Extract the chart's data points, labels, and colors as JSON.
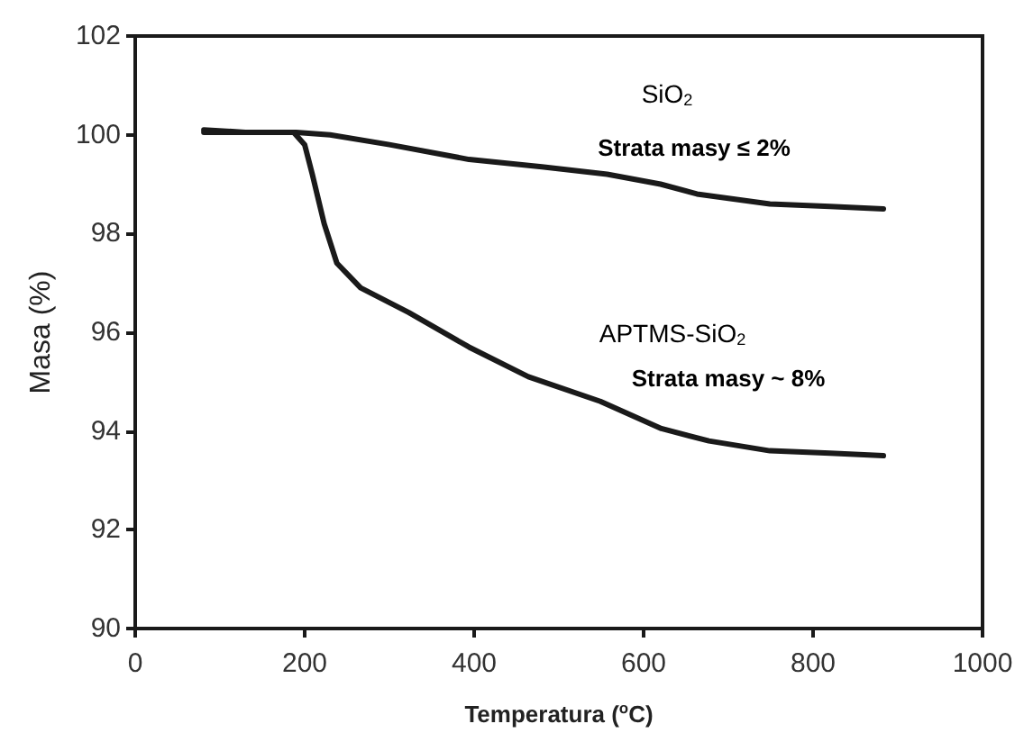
{
  "chart_data": {
    "type": "line",
    "xlabel": "Temperatura ($^{o}$C)",
    "ylabel": "Masa (%)",
    "xlim": [
      0,
      1000
    ],
    "xticks": [
      0,
      200,
      400,
      600,
      800,
      1000
    ],
    "ylim": [
      90,
      102
    ],
    "yticks": [
      90,
      92,
      94,
      96,
      98,
      100,
      102
    ],
    "grid": false,
    "marker": "none",
    "line_style": "solid",
    "annotations": [
      "SiO$_{2}$",
      "Strata masy ≤ 2%",
      "APTMS-SiO$_{2}$",
      "Strata masy ~ 8%"
    ],
    "series": [
      {
        "color": "#1a1a1a",
        "x": [
          81,
          130,
          190,
          230,
          300,
          394,
          480,
          557,
          620,
          663,
          749,
          820,
          883
        ],
        "values": [
          100.1,
          100.05,
          100.05,
          100.0,
          99.8,
          99.5,
          99.35,
          99.2,
          99.0,
          98.8,
          98.6,
          98.55,
          98.5
        ]
      },
      {
        "color": "#1a1a1a",
        "x": [
          81,
          130,
          187,
          200,
          209,
          216,
          223,
          238,
          266,
          323,
          394,
          464,
          549,
          621,
          677,
          749,
          820,
          883
        ],
        "values": [
          100.05,
          100.05,
          100.05,
          99.8,
          99.2,
          98.7,
          98.2,
          97.4,
          96.9,
          96.4,
          95.7,
          95.1,
          94.6,
          94.05,
          93.8,
          93.6,
          93.55,
          93.5
        ]
      }
    ]
  }
}
